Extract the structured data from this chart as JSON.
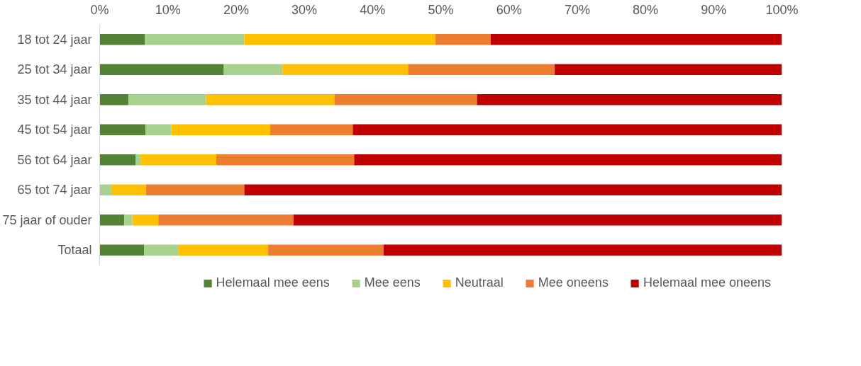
{
  "chart_data": {
    "type": "bar",
    "orientation": "horizontal",
    "stacked": true,
    "categories": [
      "18 tot 24 jaar",
      "25 tot 34 jaar",
      "35 tot 44 jaar",
      "45 tot 54 jaar",
      "56 tot 64 jaar",
      "65 tot 74 jaar",
      "75 jaar of ouder",
      "Totaal"
    ],
    "series": [
      {
        "name": "Helemaal mee eens",
        "color": "#548235",
        "values": [
          6.6,
          18.2,
          4.2,
          6.7,
          5.3,
          0,
          3.6,
          6.5
        ]
      },
      {
        "name": "Mee eens",
        "color": "#a9d18e",
        "values": [
          14.6,
          8.6,
          11.4,
          3.8,
          0.7,
          1.7,
          1.2,
          5.1
        ]
      },
      {
        "name": "Neutraal",
        "color": "#ffc000",
        "values": [
          28.0,
          18.4,
          18.8,
          14.5,
          11.1,
          5.1,
          3.8,
          13.1
        ]
      },
      {
        "name": "Mee oneens",
        "color": "#ed7d31",
        "values": [
          8.1,
          21.5,
          20.9,
          12.1,
          20.2,
          14.4,
          19.8,
          16.9
        ]
      },
      {
        "name": "Helemaal mee oneens",
        "color": "#c00000",
        "values": [
          42.7,
          33.3,
          44.7,
          62.9,
          62.7,
          78.8,
          71.6,
          58.4
        ]
      }
    ],
    "xlim": [
      0,
      100
    ],
    "xticks": [
      {
        "value": 0,
        "label": "0%"
      },
      {
        "value": 10,
        "label": "10%"
      },
      {
        "value": 20,
        "label": "20%"
      },
      {
        "value": 30,
        "label": "30%"
      },
      {
        "value": 40,
        "label": "40%"
      },
      {
        "value": 50,
        "label": "50%"
      },
      {
        "value": 60,
        "label": "60%"
      },
      {
        "value": 70,
        "label": "70%"
      },
      {
        "value": 80,
        "label": "80%"
      },
      {
        "value": 90,
        "label": "90%"
      },
      {
        "value": 100,
        "label": "100%"
      }
    ],
    "grid": false,
    "legend": "bottom"
  }
}
